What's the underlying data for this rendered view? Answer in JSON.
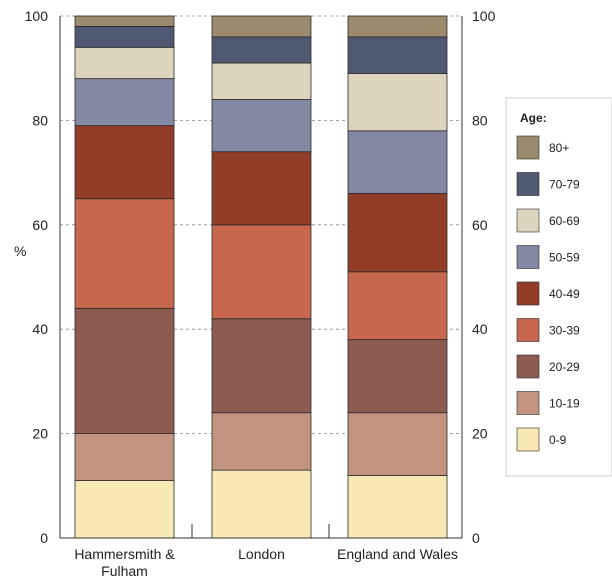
{
  "chart_data": {
    "type": "bar",
    "stacked": true,
    "ylabel": "%",
    "ylim": [
      0,
      100
    ],
    "yticks": [
      0,
      20,
      40,
      60,
      80,
      100
    ],
    "grid": true,
    "legend_title": "Age:",
    "legend_position": "right",
    "categories": [
      [
        "Hammersmith &",
        "Fulham"
      ],
      [
        "London"
      ],
      [
        "England and Wales"
      ]
    ],
    "series": [
      {
        "name": "0-9",
        "color": "#f7e8b4",
        "values": [
          11,
          13,
          12
        ]
      },
      {
        "name": "10-19",
        "color": "#c39581",
        "values": [
          9,
          11,
          12
        ]
      },
      {
        "name": "20-29",
        "color": "#8e5b51",
        "values": [
          24,
          18,
          14
        ]
      },
      {
        "name": "30-39",
        "color": "#c6674e",
        "values": [
          21,
          18,
          13
        ]
      },
      {
        "name": "40-49",
        "color": "#913d28",
        "values": [
          14,
          14,
          15
        ]
      },
      {
        "name": "50-59",
        "color": "#8389a2",
        "values": [
          9,
          10,
          12
        ]
      },
      {
        "name": "60-69",
        "color": "#dcd4bd",
        "values": [
          6,
          7,
          11
        ]
      },
      {
        "name": "70-79",
        "color": "#4f5a72",
        "values": [
          4,
          5,
          7
        ]
      },
      {
        "name": "80+",
        "color": "#9c8a6f",
        "values": [
          2,
          4,
          4
        ]
      }
    ]
  }
}
